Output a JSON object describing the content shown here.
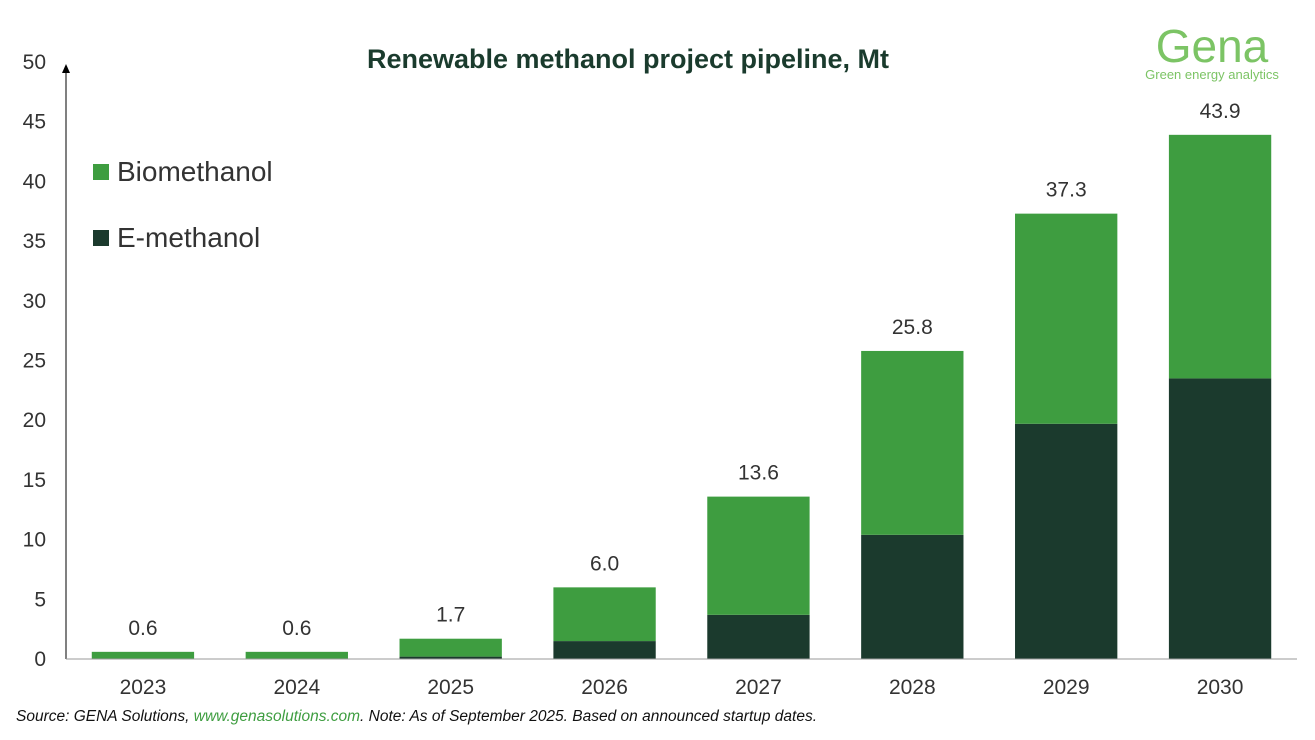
{
  "chart_data": {
    "type": "bar",
    "stacked": true,
    "title": "Renewable methanol project pipeline, Mt",
    "categories": [
      "2023",
      "2024",
      "2025",
      "2026",
      "2027",
      "2028",
      "2029",
      "2030"
    ],
    "series": [
      {
        "name": "E-methanol",
        "color": "#1b3a2d",
        "values": [
          0.0,
          0.0,
          0.2,
          1.5,
          3.7,
          10.4,
          19.7,
          23.5
        ]
      },
      {
        "name": "Biomethanol",
        "color": "#3e9d40",
        "values": [
          0.6,
          0.6,
          1.5,
          4.5,
          9.9,
          15.4,
          17.6,
          20.4
        ]
      }
    ],
    "totals": [
      "0.6",
      "0.6",
      "1.7",
      "6.0",
      "13.6",
      "25.8",
      "37.3",
      "43.9"
    ],
    "ylim": [
      0,
      50
    ],
    "yticks": [
      "0",
      "5",
      "10",
      "15",
      "20",
      "25",
      "30",
      "35",
      "40",
      "45",
      "50"
    ],
    "legend": {
      "placement": "top-left",
      "entries": [
        "Biomethanol",
        "E-methanol"
      ]
    },
    "grid": false,
    "xlabel": "",
    "ylabel": ""
  },
  "logo": {
    "name": "Gena",
    "tagline": "Green energy analytics"
  },
  "source": {
    "prefix": "Source: GENA Solutions, ",
    "link": "www.genasolutions.com",
    "suffix": ". Note: As of September 2025. Based on announced startup dates."
  }
}
